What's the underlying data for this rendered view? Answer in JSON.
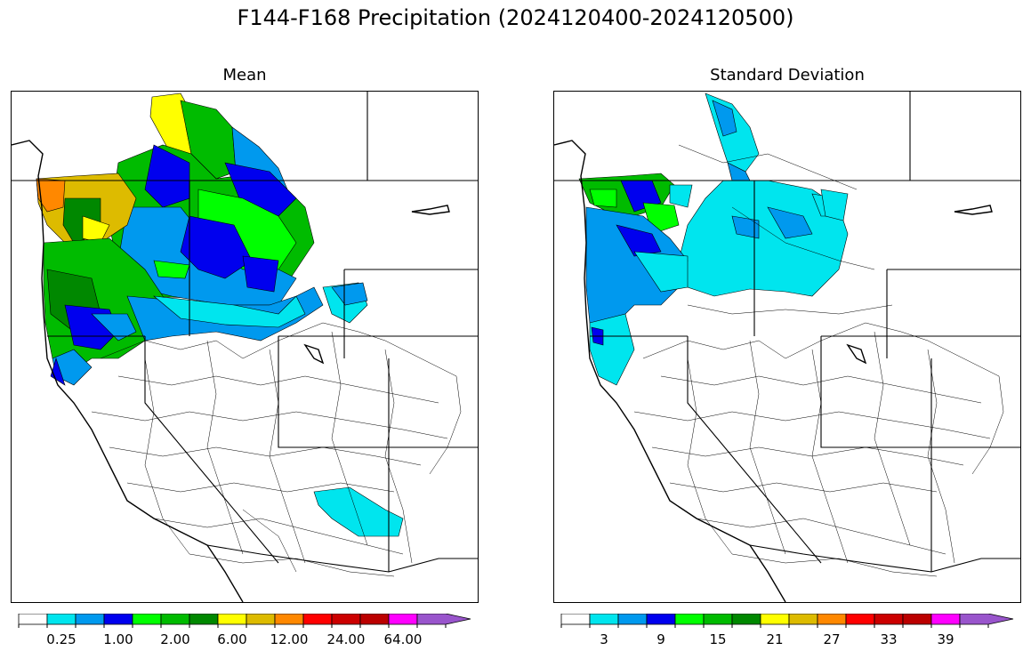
{
  "title": "F144-F168 Precipitation (2024120400-2024120500)",
  "panels": [
    {
      "id": "mean",
      "title": "Mean",
      "colorbar": {
        "colors": [
          "#ffffff",
          "#00e5ee",
          "#0099ee",
          "#0000ee",
          "#00ff00",
          "#00bb00",
          "#008800",
          "#ffff00",
          "#ddbb00",
          "#ff8800",
          "#ff0000",
          "#cc0000",
          "#bb0000",
          "#ff00ff",
          "#9955cc"
        ],
        "tick_labels": [
          "0.25",
          "1.00",
          "2.00",
          "6.00",
          "12.00",
          "24.00",
          "64.00"
        ],
        "tick_boxes": [
          1,
          3,
          5,
          7,
          9,
          11,
          13
        ],
        "extend": "max"
      }
    },
    {
      "id": "std",
      "title": "Standard Deviation",
      "colorbar": {
        "colors": [
          "#ffffff",
          "#00e5ee",
          "#0099ee",
          "#0000ee",
          "#00ff00",
          "#00bb00",
          "#008800",
          "#ffff00",
          "#ddbb00",
          "#ff8800",
          "#ff0000",
          "#cc0000",
          "#bb0000",
          "#ff00ff",
          "#9955cc"
        ],
        "tick_labels": [
          "3",
          "9",
          "15",
          "21",
          "27",
          "33",
          "39"
        ],
        "tick_boxes": [
          1,
          3,
          5,
          7,
          9,
          11,
          13
        ],
        "extend": "max"
      }
    }
  ]
}
